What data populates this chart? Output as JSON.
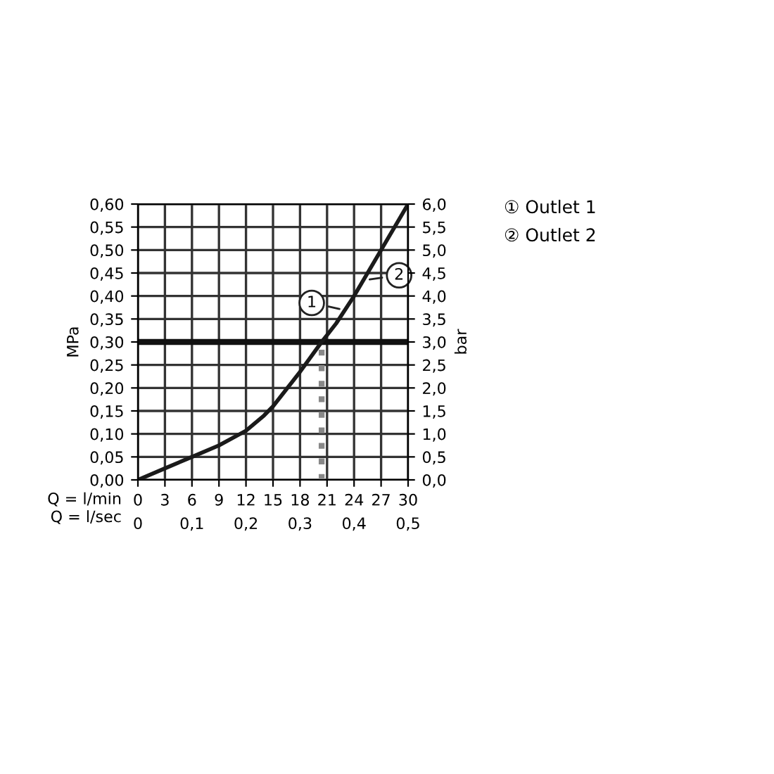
{
  "chart_data": {
    "type": "line",
    "x": [
      0,
      3,
      6,
      9,
      12,
      14,
      15,
      18,
      20.4,
      22,
      24,
      27,
      30
    ],
    "series": [
      {
        "color": "#1a1a1a",
        "values": [
          0,
          0.025,
          0.05,
          0.075,
          0.107,
          0.14,
          0.16,
          0.235,
          0.3,
          0.34,
          0.4,
          0.5,
          0.6
        ]
      }
    ],
    "xlabel": "Q = l/min",
    "x2label": "Q = l/sec",
    "ylabel": "MPa",
    "y2label": "bar",
    "xlim": [
      0,
      30
    ],
    "xticks": [
      0,
      3,
      6,
      9,
      12,
      15,
      18,
      21,
      24,
      27,
      30
    ],
    "x2lim": [
      0,
      0.5
    ],
    "x2ticks": [
      0,
      {
        "value": 0.1,
        "label": "0,1"
      },
      {
        "value": 0.2,
        "label": "0,2"
      },
      {
        "value": 0.3,
        "label": "0,3"
      },
      {
        "value": 0.4,
        "label": "0,4"
      },
      {
        "value": 0.5,
        "label": "0,5"
      }
    ],
    "ylim": [
      0,
      0.6
    ],
    "yticks": [
      {
        "value": 0,
        "label": "0,00"
      },
      {
        "value": 0.05,
        "label": "0,05"
      },
      {
        "value": 0.1,
        "label": "0,10"
      },
      {
        "value": 0.15,
        "label": "0,15"
      },
      {
        "value": 0.2,
        "label": "0,20"
      },
      {
        "value": 0.25,
        "label": "0,25"
      },
      {
        "value": 0.3,
        "label": "0,30"
      },
      {
        "value": 0.35,
        "label": "0,35"
      },
      {
        "value": 0.4,
        "label": "0,40"
      },
      {
        "value": 0.45,
        "label": "0,45"
      },
      {
        "value": 0.5,
        "label": "0,50"
      },
      {
        "value": 0.55,
        "label": "0,55"
      },
      {
        "value": 0.6,
        "label": "0,60"
      }
    ],
    "y2lim": [
      0,
      6
    ],
    "y2ticks": [
      {
        "value": 0,
        "label": "0,0"
      },
      {
        "value": 0.5,
        "label": "0,5"
      },
      {
        "value": 1,
        "label": "1,0"
      },
      {
        "value": 1.5,
        "label": "1,5"
      },
      {
        "value": 2,
        "label": "2,0"
      },
      {
        "value": 2.5,
        "label": "2,5"
      },
      {
        "value": 3,
        "label": "3,0"
      },
      {
        "value": 3.5,
        "label": "3,5"
      },
      {
        "value": 4,
        "label": "4,0"
      },
      {
        "value": 4.5,
        "label": "4,5"
      },
      {
        "value": 5,
        "label": "5,0"
      },
      {
        "value": 5.5,
        "label": "5,5"
      },
      {
        "value": 6,
        "label": "6,0"
      }
    ],
    "grid": true,
    "ref_lines": [
      {
        "axis": "y",
        "value": 0.3,
        "color": "#111111",
        "line_style": "solid"
      },
      {
        "axis": "x",
        "value": 20.4,
        "color": "#888888",
        "line_style": "dotted"
      }
    ],
    "annotations": [
      {
        "text": "1",
        "x": 22.8,
        "y": 0.37
      },
      {
        "text": "2",
        "x": 25.3,
        "y": 0.435
      },
      "① Outlet 1",
      "② Outlet 2"
    ]
  }
}
